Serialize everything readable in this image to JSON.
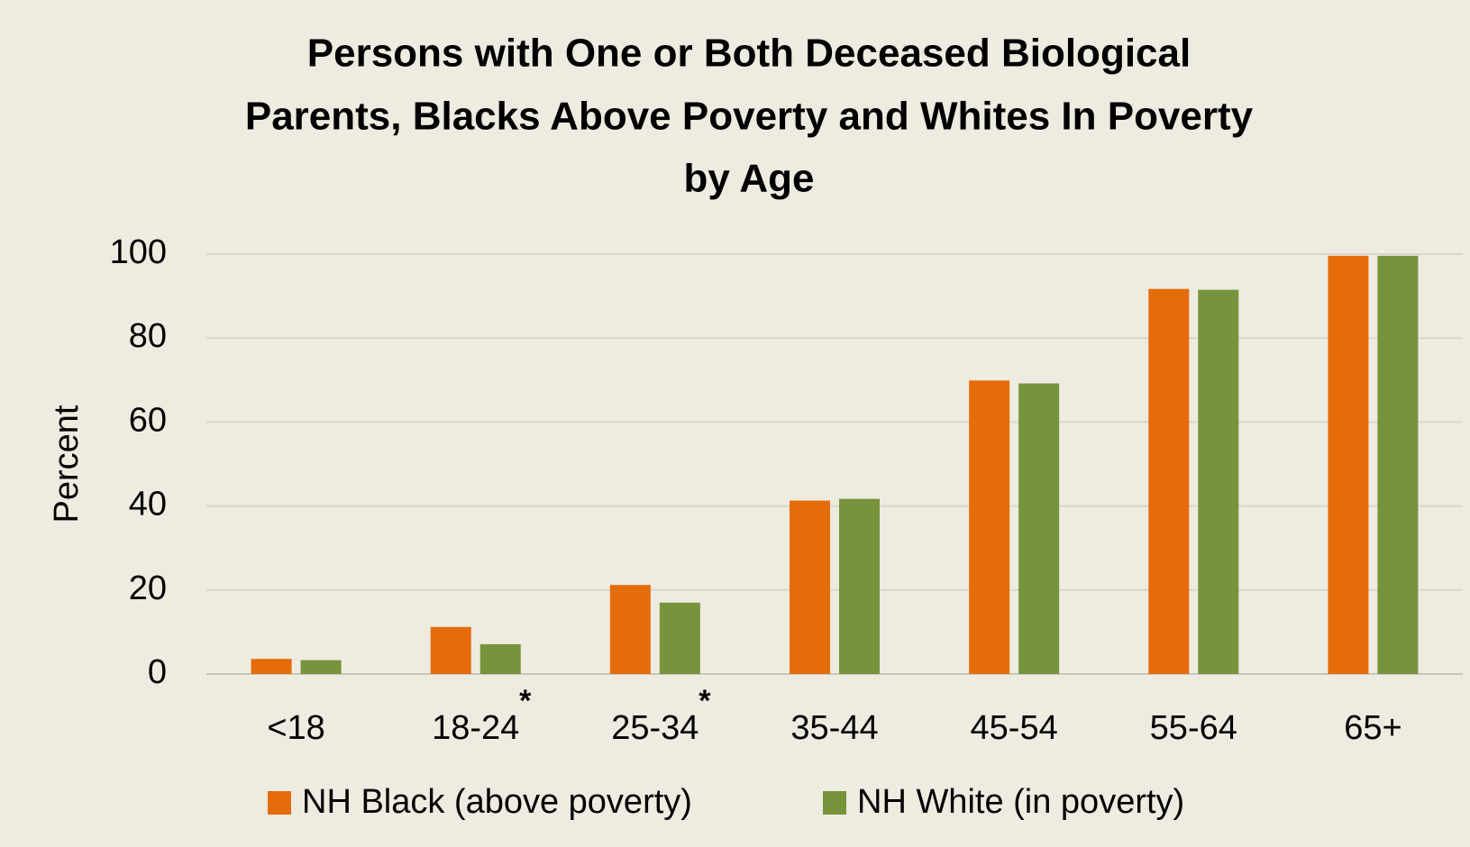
{
  "chart_data": {
    "type": "bar",
    "title": [
      "Persons with One or Both Deceased Biological",
      "Parents, Blacks Above Poverty and Whites In Poverty",
      "by Age"
    ],
    "y_label": "Percent",
    "categories": [
      "<18",
      "18-24",
      "25-34",
      "35-44",
      "45-54",
      "55-64",
      "65+"
    ],
    "series": [
      {
        "name": "NH Black (above poverty)",
        "color": "#e46c0a",
        "values": [
          3.6,
          11.2,
          21.2,
          41.3,
          69.9,
          91.7,
          99.6
        ]
      },
      {
        "name": "NH White (in poverty)",
        "color": "#77933c",
        "values": [
          3.3,
          7.1,
          17.0,
          41.7,
          69.2,
          91.5,
          99.6
        ]
      }
    ],
    "annotations": [
      {
        "category": "18-24",
        "text": "*"
      },
      {
        "category": "25-34",
        "text": "*"
      }
    ],
    "ylim": [
      0,
      100
    ],
    "yticks": [
      0,
      20,
      40,
      60,
      80,
      100
    ],
    "grid": true,
    "legend": "bottom"
  }
}
